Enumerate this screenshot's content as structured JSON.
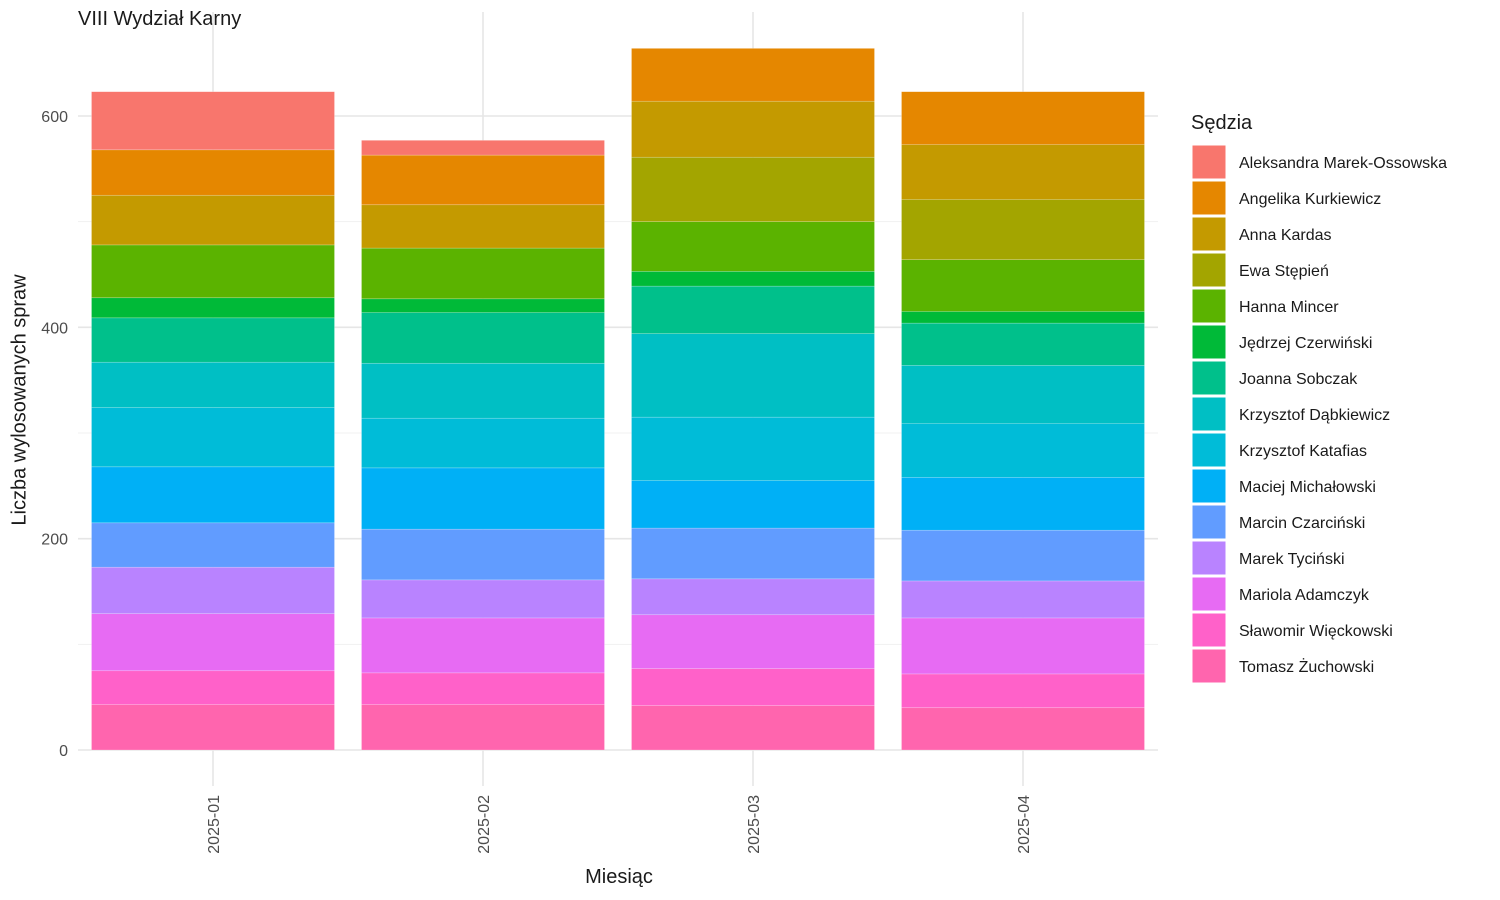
{
  "chart_data": {
    "type": "bar",
    "stacked": true,
    "title": "VIII Wydział Karny",
    "xlabel": "Miesiąc",
    "ylabel": "Liczba wylosowanych spraw",
    "legend_title": "Sędzia",
    "legend_position": "right",
    "grid": true,
    "ylim": [
      -25,
      700
    ],
    "yticks": [
      0,
      200,
      400,
      600
    ],
    "categories": [
      "2025-01",
      "2025-02",
      "2025-03",
      "2025-04"
    ],
    "series": [
      {
        "name": "Tomasz Żuchowski",
        "color": "#FF65AE",
        "values": [
          43,
          43,
          42,
          40
        ]
      },
      {
        "name": "Sławomir Więckowski",
        "color": "#FF61C9",
        "values": [
          32,
          30,
          35,
          32
        ]
      },
      {
        "name": "Mariola Adamczyk",
        "color": "#E76BF3",
        "values": [
          54,
          52,
          51,
          53
        ]
      },
      {
        "name": "Marek Tyciński",
        "color": "#B983FF",
        "values": [
          44,
          36,
          34,
          35
        ]
      },
      {
        "name": "Marcin Czarciński",
        "color": "#619CFF",
        "values": [
          42,
          48,
          48,
          48
        ]
      },
      {
        "name": "Maciej Michałowski",
        "color": "#00B0F6",
        "values": [
          53,
          58,
          45,
          50
        ]
      },
      {
        "name": "Krzysztof Katafias",
        "color": "#00BCD8",
        "values": [
          56,
          47,
          60,
          51
        ]
      },
      {
        "name": "Krzysztof Dąbkiewicz",
        "color": "#00BFC4",
        "values": [
          43,
          52,
          79,
          55
        ]
      },
      {
        "name": "Joanna Sobczak",
        "color": "#00C08B",
        "values": [
          42,
          48,
          45,
          40
        ]
      },
      {
        "name": "Jędrzej Czerwiński",
        "color": "#00BA38",
        "values": [
          19,
          13,
          14,
          11
        ]
      },
      {
        "name": "Hanna Mincer",
        "color": "#5BB300",
        "values": [
          50,
          48,
          47,
          49
        ]
      },
      {
        "name": "Ewa Stępień",
        "color": "#A3A500",
        "values": [
          0,
          0,
          61,
          57
        ]
      },
      {
        "name": "Anna Kardas",
        "color": "#C49A00",
        "values": [
          47,
          41,
          53,
          52
        ]
      },
      {
        "name": "Angelika Kurkiewicz",
        "color": "#E58700",
        "values": [
          43,
          47,
          50,
          50
        ]
      },
      {
        "name": "Aleksandra Marek-Ossowska",
        "color": "#F8766D",
        "values": [
          55,
          14,
          0,
          0
        ]
      }
    ],
    "legend_order": [
      "Aleksandra Marek-Ossowska",
      "Angelika Kurkiewicz",
      "Anna Kardas",
      "Ewa Stępień",
      "Hanna Mincer",
      "Jędrzej Czerwiński",
      "Joanna Sobczak",
      "Krzysztof Dąbkiewicz",
      "Krzysztof Katafias",
      "Maciej Michałowski",
      "Marcin Czarciński",
      "Marek Tyciński",
      "Mariola Adamczyk",
      "Sławomir Więckowski",
      "Tomasz Żuchowski"
    ]
  }
}
